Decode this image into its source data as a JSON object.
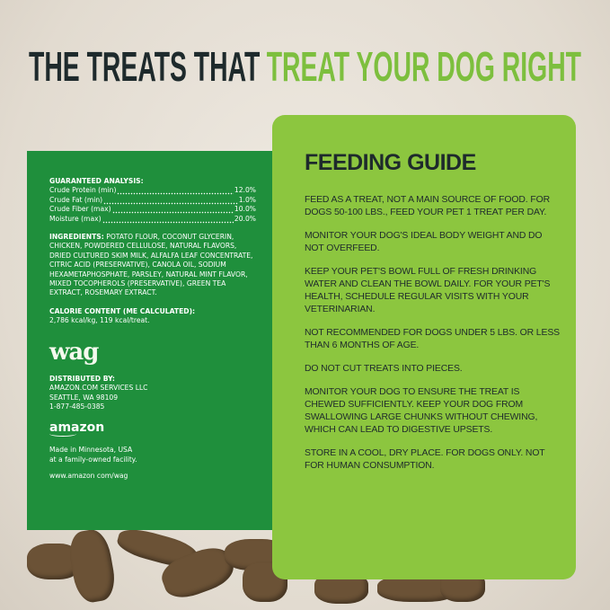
{
  "headline": {
    "part1": "THE TREATS THAT",
    "part2": "TREAT YOUR DOG RIGHT"
  },
  "label": {
    "analysis_title": "GUARANTEED ANALYSIS:",
    "analysis": [
      {
        "name": "Crude Protein (min)",
        "value": "12.0%"
      },
      {
        "name": "Crude Fat (min)",
        "value": "1.0%"
      },
      {
        "name": "Crude Fiber (max)",
        "value": "10.0%"
      },
      {
        "name": "Moisture (max)",
        "value": "20.0%"
      }
    ],
    "ingredients_title": "INGREDIENTS:",
    "ingredients": "POTATO FLOUR, COCONUT GLYCERIN, CHICKEN, POWDERED CELLULOSE, NATURAL FLAVORS, DRIED CULTURED SKIM MILK, ALFALFA LEAF CONCENTRATE, CITRIC ACID (PRESERVATIVE), CANOLA OIL, SODIUM HEXAMETAPHOSPHATE, PARSLEY, NATURAL MINT FLAVOR, MIXED TOCOPHEROLS (PRESERVATIVE), GREEN TEA EXTRACT, ROSEMARY EXTRACT.",
    "calorie_title": "CALORIE CONTENT (ME CALCULATED):",
    "calorie": "2,786 kcal/kg, 119 kcal/treat.",
    "brand_logo": "wag",
    "distributed_title": "DISTRIBUTED BY:",
    "distributor": [
      "AMAZON.COM SERVICES LLC",
      "SEATTLE, WA 98109",
      "1-877-485-0385"
    ],
    "amazon_logo": "amazon",
    "made_in": [
      "Made in Minnesota, USA",
      "at a family-owned facility."
    ],
    "website": "www.amazon com/wag"
  },
  "feeding_guide": {
    "title": "FEEDING GUIDE",
    "paragraphs": [
      "FEED AS A TREAT, NOT A MAIN SOURCE OF FOOD. FOR DOGS 50-100 LBS., FEED YOUR PET 1 TREAT PER DAY.",
      "MONITOR YOUR DOG'S IDEAL BODY WEIGHT AND DO NOT OVERFEED.",
      "KEEP YOUR PET'S BOWL FULL OF FRESH DRINKING WATER AND CLEAN THE BOWL DAILY. FOR YOUR PET'S HEALTH, SCHEDULE REGULAR VISITS WITH YOUR VETERINARIAN.",
      "NOT RECOMMENDED FOR DOGS UNDER 5 LBS. OR LESS THAN 6 MONTHS OF AGE.",
      "DO NOT CUT TREATS INTO PIECES.",
      "MONITOR YOUR DOG TO ENSURE THE TREAT IS CHEWED SUFFICIENTLY. KEEP YOUR DOG FROM SWALLOWING LARGE CHUNKS WITHOUT CHEWING, WHICH CAN LEAD TO DIGESTIVE UPSETS.",
      "STORE IN A COOL, DRY PLACE. FOR DOGS ONLY. NOT FOR HUMAN CONSUMPTION."
    ]
  },
  "colors": {
    "dark_green": "#1f8f3c",
    "light_green": "#8cc63f",
    "headline_dark": "#1e2a2c",
    "headline_green": "#7dbf3e"
  }
}
